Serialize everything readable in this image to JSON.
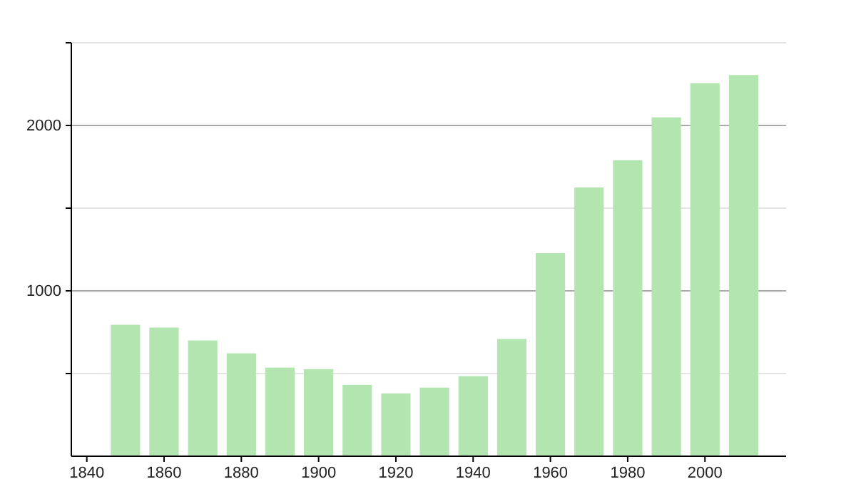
{
  "chart_data": {
    "type": "bar",
    "x": [
      1850,
      1860,
      1870,
      1880,
      1890,
      1900,
      1910,
      1920,
      1930,
      1940,
      1950,
      1960,
      1970,
      1980,
      1990,
      2000,
      2010
    ],
    "values": [
      795,
      778,
      700,
      622,
      536,
      527,
      432,
      380,
      415,
      484,
      709,
      1228,
      1625,
      1790,
      2049,
      2256,
      2305
    ],
    "color": "#b2e5b0",
    "xlim": [
      1836,
      2021
    ],
    "xticks": [
      1840,
      1860,
      1880,
      1900,
      1920,
      1940,
      1960,
      1980,
      2000
    ],
    "ylim": [
      0,
      2500
    ],
    "yticks": [
      {
        "value": 500,
        "label": null
      },
      1000,
      {
        "value": 1500,
        "label": null
      },
      2000,
      {
        "value": 2500,
        "label": null
      }
    ],
    "grid": "y"
  }
}
